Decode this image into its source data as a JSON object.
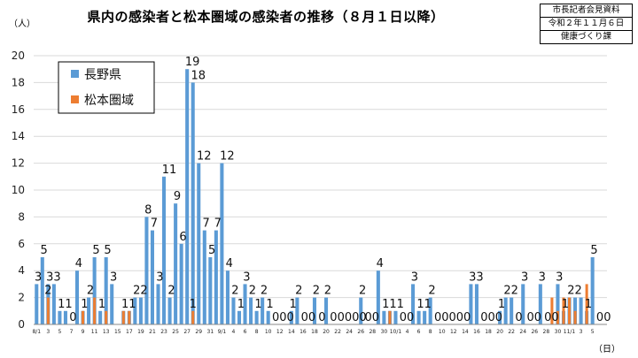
{
  "title": "県内の感染者と松本圏域の感染者の推移（８月１日以降）",
  "source_box": [
    "市長記者会見資料",
    "令和２年１１月６日",
    "健康づくり課"
  ],
  "chart_data": {
    "type": "bar",
    "ylabel": "（人）",
    "xlabel": "（日）",
    "ylim": [
      0,
      20
    ],
    "yticks": [
      0,
      2,
      4,
      6,
      8,
      10,
      12,
      14,
      16,
      18,
      20
    ],
    "legend_position": "top-left",
    "x_tick_labels": [
      "8/1",
      "3",
      "5",
      "7",
      "9",
      "11",
      "13",
      "15",
      "17",
      "19",
      "21",
      "23",
      "25",
      "27",
      "29",
      "31",
      "9/1",
      "4",
      "6",
      "8",
      "10",
      "12",
      "14",
      "16",
      "18",
      "20",
      "22",
      "24",
      "26",
      "28",
      "30",
      "10/1",
      "4",
      "6",
      "8",
      "10",
      "12",
      "14",
      "16",
      "18",
      "20",
      "22",
      "24",
      "26",
      "28",
      "30",
      "11/1",
      "3",
      "5"
    ],
    "series": [
      {
        "name": "長野県",
        "color": "#5b9bd5",
        "values": [
          3,
          5,
          3,
          3,
          1,
          1,
          0,
          4,
          1,
          2,
          5,
          1,
          5,
          3,
          0,
          1,
          1,
          2,
          2,
          8,
          7,
          3,
          11,
          2,
          9,
          6,
          19,
          18,
          12,
          7,
          5,
          7,
          12,
          4,
          2,
          1,
          3,
          2,
          1,
          2,
          1,
          0,
          0,
          0,
          1,
          2,
          0,
          0,
          2,
          0,
          2,
          0,
          0,
          0,
          0,
          0,
          2,
          0,
          0,
          4,
          1,
          1,
          1,
          0,
          0,
          3,
          1,
          1,
          2,
          0,
          0,
          0,
          0,
          0,
          0,
          3,
          3,
          0,
          0,
          0,
          1,
          2,
          2,
          0,
          3,
          0,
          0,
          3,
          0,
          0,
          3,
          1,
          2,
          2,
          2,
          1,
          5,
          0,
          0
        ]
      },
      {
        "name": "松本圏域",
        "color": "#ed7d31",
        "values": [
          0,
          0,
          2,
          0,
          0,
          0,
          0,
          0,
          1,
          0,
          2,
          0,
          1,
          0,
          0,
          1,
          1,
          0,
          0,
          0,
          0,
          0,
          0,
          0,
          0,
          0,
          0,
          1,
          0,
          0,
          0,
          0,
          0,
          0,
          0,
          0,
          0,
          0,
          0,
          0,
          0,
          0,
          0,
          0,
          0,
          0,
          0,
          0,
          0,
          0,
          0,
          0,
          0,
          0,
          0,
          0,
          0,
          0,
          0,
          0,
          0,
          1,
          0,
          0,
          0,
          0,
          0,
          0,
          0,
          0,
          0,
          0,
          0,
          0,
          0,
          0,
          0,
          0,
          0,
          0,
          0,
          0,
          0,
          0,
          0,
          0,
          0,
          0,
          0,
          2,
          1,
          2,
          2,
          1,
          0,
          3,
          0,
          0,
          0
        ]
      }
    ],
    "data_labels": [
      "3",
      "5",
      "33",
      "",
      "11",
      "",
      "0",
      "4",
      "1",
      "2",
      "5",
      "1",
      "5",
      "3",
      "",
      "11",
      "",
      "22",
      "",
      "8",
      "7",
      "3",
      "11",
      "2",
      "9",
      "6",
      "19",
      "18",
      "12",
      "7",
      "5",
      "7",
      "12",
      "4",
      "2",
      "1",
      "3",
      "2",
      "1",
      "2",
      "1",
      "000",
      "",
      "",
      "1",
      "2",
      "00",
      "",
      "2",
      "0",
      "2",
      "00000",
      "",
      "",
      "",
      "",
      "2",
      "00",
      "",
      "4",
      "111",
      "",
      "",
      "00",
      "",
      "3",
      "11",
      "",
      "2",
      "00000",
      "",
      "",
      "",
      "",
      "",
      "33",
      "",
      "000",
      "",
      "",
      "1",
      "22",
      "",
      "0",
      "3",
      "00",
      "",
      "3",
      "00",
      "",
      "3",
      "1",
      "22",
      "",
      "",
      "1",
      "5",
      "00",
      ""
    ],
    "orange_labels": [
      "",
      "",
      "2",
      "",
      "",
      "",
      "",
      "",
      "",
      "",
      "",
      "",
      "",
      "",
      "",
      "",
      "",
      "",
      "",
      "",
      "",
      "",
      "",
      "",
      "",
      "",
      "",
      "1",
      "",
      "",
      "",
      "",
      "",
      "",
      "",
      "",
      "",
      "",
      "",
      "",
      "",
      "",
      "",
      "",
      "",
      "",
      "",
      "",
      "",
      "",
      "",
      "",
      "",
      "",
      "",
      "",
      "",
      "",
      "",
      "",
      "",
      "",
      "",
      "",
      "",
      "",
      "",
      "",
      "",
      "",
      "",
      "",
      "",
      "",
      "",
      "",
      "",
      "",
      "",
      "",
      "",
      "",
      "",
      "",
      "",
      "",
      "",
      "",
      "",
      "",
      "",
      "",
      "",
      "",
      "",
      "",
      "",
      "",
      "",
      "",
      "",
      "1",
      "",
      "",
      "3",
      "",
      ""
    ]
  }
}
